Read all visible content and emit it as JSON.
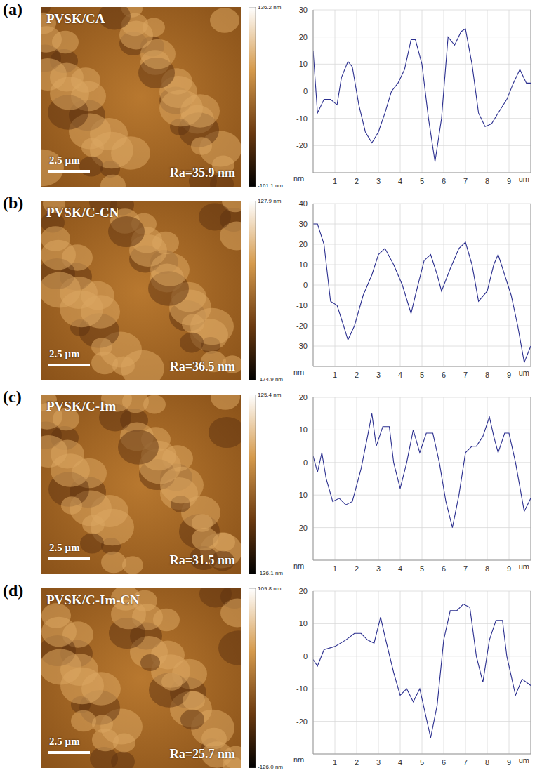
{
  "panels": [
    {
      "label": "(a)",
      "sample": "PVSK/CA",
      "scale_bar": "2.5 µm",
      "ra": "Ra=35.9 nm",
      "colorbar": {
        "range": [
          -161.1,
          136.2
        ],
        "ticks": [
          {
            "value": 136.2,
            "label": "136.2 nm"
          },
          {
            "value": -161.1,
            "label": "-161.1 nm"
          }
        ]
      }
    },
    {
      "label": "(b)",
      "sample": "PVSK/C-CN",
      "scale_bar": "2.5 µm",
      "ra": "Ra=36.5 nm",
      "colorbar": {
        "range": [
          -174.9,
          127.9
        ],
        "ticks": [
          {
            "value": 127.9,
            "label": "127.9 nm"
          },
          {
            "value": -174.9,
            "label": "-174.9 nm"
          }
        ]
      }
    },
    {
      "label": "(c)",
      "sample": "PVSK/C-Im",
      "scale_bar": "2.5 µm",
      "ra": "Ra=31.5 nm",
      "colorbar": {
        "range": [
          -136.1,
          125.4
        ],
        "ticks": [
          {
            "value": 125.4,
            "label": "125.4 nm"
          },
          {
            "value": -136.1,
            "label": "-136.1 nm"
          }
        ]
      }
    },
    {
      "label": "(d)",
      "sample": "PVSK/C-Im-CN",
      "scale_bar": "2.5 µm",
      "ra": "Ra=25.7 nm",
      "colorbar": {
        "range": [
          -126.0,
          109.8
        ],
        "ticks": [
          {
            "value": 109.8,
            "label": "109.8 nm"
          },
          {
            "value": -126.0,
            "label": "-126.0 nm"
          }
        ]
      }
    }
  ],
  "chart_data": [
    {
      "type": "line",
      "x_label": "um",
      "y_label": "nm",
      "color": "#2b2f8f",
      "grid": true,
      "x": [
        0,
        0.2,
        0.5,
        0.8,
        1.1,
        1.3,
        1.6,
        1.8,
        2.1,
        2.4,
        2.7,
        3.0,
        3.3,
        3.6,
        3.9,
        4.2,
        4.5,
        4.7,
        5.0,
        5.3,
        5.6,
        5.9,
        6.2,
        6.5,
        6.8,
        7.0,
        7.3,
        7.6,
        7.9,
        8.2,
        8.5,
        8.9,
        9.2,
        9.5,
        9.8,
        10
      ],
      "values": [
        15,
        -8,
        -3,
        -3,
        -5,
        5,
        11,
        9,
        -5,
        -15,
        -19,
        -15,
        -8,
        0,
        3,
        8,
        19,
        19,
        10,
        -10,
        -26,
        -10,
        20,
        17,
        22,
        23,
        10,
        -8,
        -13,
        -12,
        -8,
        -3,
        3,
        8,
        3,
        3
      ],
      "xlim": [
        0,
        10
      ],
      "xticks": [
        1,
        2,
        3,
        4,
        5,
        6,
        7,
        8,
        9
      ],
      "ylim": [
        -30,
        30
      ],
      "yticks": [
        -20,
        -10,
        0,
        10,
        20,
        30
      ]
    },
    {
      "type": "line",
      "x_label": "um",
      "y_label": "nm",
      "color": "#2b2f8f",
      "grid": true,
      "x": [
        0,
        0.2,
        0.5,
        0.8,
        1.1,
        1.4,
        1.6,
        1.9,
        2.3,
        2.7,
        3.0,
        3.3,
        3.7,
        4.1,
        4.5,
        4.7,
        5.1,
        5.4,
        5.7,
        5.9,
        6.3,
        6.7,
        7.0,
        7.3,
        7.6,
        8.0,
        8.3,
        8.5,
        8.8,
        9.1,
        9.4,
        9.7,
        10
      ],
      "values": [
        30,
        30,
        20,
        -8,
        -10,
        -20,
        -27,
        -20,
        -5,
        5,
        15,
        18,
        10,
        0,
        -14,
        -5,
        12,
        15,
        5,
        -3,
        8,
        18,
        21,
        10,
        -8,
        -3,
        10,
        15,
        5,
        -5,
        -20,
        -38,
        -30
      ],
      "xlim": [
        0,
        10
      ],
      "xticks": [
        1,
        2,
        3,
        4,
        5,
        6,
        7,
        8,
        9
      ],
      "ylim": [
        -40,
        40
      ],
      "yticks": [
        -30,
        -20,
        -10,
        0,
        10,
        20,
        30,
        40
      ]
    },
    {
      "type": "line",
      "x_label": "um",
      "y_label": "nm",
      "color": "#2b2f8f",
      "grid": true,
      "x": [
        0,
        0.2,
        0.4,
        0.6,
        0.9,
        1.2,
        1.5,
        1.8,
        2.2,
        2.5,
        2.7,
        2.9,
        3.2,
        3.5,
        3.7,
        4.0,
        4.3,
        4.6,
        4.9,
        5.2,
        5.5,
        5.8,
        6.1,
        6.4,
        6.7,
        7.0,
        7.3,
        7.5,
        7.8,
        8.1,
        8.3,
        8.5,
        8.8,
        9.0,
        9.3,
        9.7,
        10
      ],
      "values": [
        2,
        -3,
        3,
        -5,
        -12,
        -11,
        -13,
        -12,
        -2,
        8,
        15,
        5,
        11,
        11,
        0,
        -8,
        0,
        10,
        3,
        9,
        9,
        0,
        -12,
        -20,
        -10,
        3,
        5,
        5,
        8,
        14,
        8,
        3,
        9,
        9,
        0,
        -15,
        -11
      ],
      "xlim": [
        0,
        10
      ],
      "xticks": [
        1,
        2,
        3,
        4,
        5,
        6,
        7,
        8,
        9
      ],
      "ylim": [
        -30,
        20
      ],
      "yticks": [
        -20,
        -10,
        0,
        10,
        20
      ]
    },
    {
      "type": "line",
      "x_label": "um",
      "y_label": "nm",
      "color": "#2b2f8f",
      "grid": true,
      "x": [
        0,
        0.2,
        0.5,
        1.0,
        1.5,
        1.9,
        2.2,
        2.5,
        2.8,
        3.1,
        3.3,
        3.7,
        4.0,
        4.3,
        4.6,
        4.9,
        5.4,
        5.7,
        6.0,
        6.3,
        6.6,
        6.9,
        7.2,
        7.5,
        7.8,
        8.1,
        8.4,
        8.7,
        8.9,
        9.3,
        9.6,
        10
      ],
      "values": [
        -1,
        -3,
        2,
        3,
        5,
        7,
        7,
        5,
        4,
        12,
        6,
        -5,
        -12,
        -10,
        -14,
        -10,
        -25,
        -15,
        5,
        14,
        14,
        16,
        15,
        0,
        -8,
        5,
        11,
        11,
        0,
        -12,
        -7,
        -9
      ],
      "xlim": [
        0,
        10
      ],
      "xticks": [
        1,
        2,
        3,
        4,
        5,
        6,
        7,
        8,
        9
      ],
      "ylim": [
        -30,
        20
      ],
      "yticks": [
        -20,
        -10,
        0,
        10,
        20
      ]
    }
  ]
}
